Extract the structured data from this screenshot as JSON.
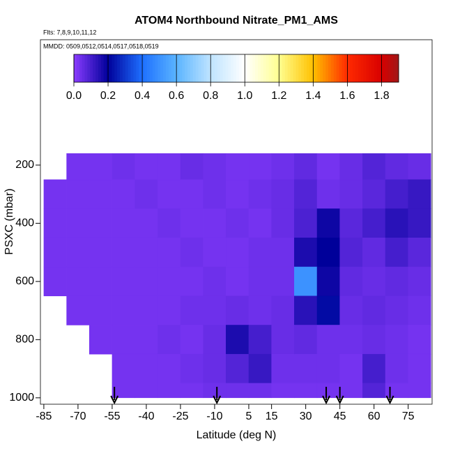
{
  "chart_data": {
    "type": "heatmap",
    "title": "ATOM4 Northbound Nitrate_PM1_AMS",
    "subtitle": "Flts: 7,8,9,10,11,12",
    "annotation": "MMDD: 0509,0512,0514,0517,0518,0519",
    "x_label": "Latitude (deg N)",
    "y_label": "PSXC (mbar)",
    "xlim": [
      -86.5,
      85.5
    ],
    "ylim": [
      1022,
      -231
    ],
    "xticks": [
      -85,
      -70,
      -55,
      -40,
      -25,
      -10,
      5,
      15,
      30,
      45,
      60,
      75
    ],
    "yticks": [
      200,
      400,
      600,
      800,
      1000
    ],
    "x_edges": [
      -85,
      -75,
      -65,
      -55,
      -45,
      -35,
      -25,
      -15,
      -5,
      5,
      15,
      25,
      35,
      45,
      55,
      65,
      75,
      85
    ],
    "y_edges": [
      160,
      250,
      350,
      450,
      550,
      650,
      750,
      850,
      950,
      1000
    ],
    "z": [
      [
        null,
        0.03,
        0.03,
        0.04,
        0.03,
        0.03,
        0.05,
        0.04,
        0.03,
        0.03,
        0.04,
        0.06,
        0.03,
        0.05,
        0.08,
        0.06,
        0.05
      ],
      [
        0.03,
        0.03,
        0.03,
        0.03,
        0.04,
        0.03,
        0.03,
        0.04,
        0.03,
        0.04,
        0.05,
        0.08,
        0.04,
        0.05,
        0.07,
        0.1,
        0.12
      ],
      [
        0.03,
        0.03,
        0.03,
        0.03,
        0.03,
        0.04,
        0.03,
        0.03,
        0.04,
        0.03,
        0.05,
        0.09,
        0.18,
        0.07,
        0.1,
        0.14,
        0.12
      ],
      [
        0.03,
        0.03,
        0.03,
        0.03,
        0.03,
        0.03,
        0.04,
        0.03,
        0.03,
        0.04,
        0.04,
        0.16,
        0.2,
        0.08,
        0.06,
        0.1,
        0.07
      ],
      [
        0.03,
        0.03,
        0.03,
        0.03,
        0.03,
        0.03,
        0.03,
        0.04,
        0.03,
        0.04,
        0.04,
        0.5,
        0.18,
        0.06,
        0.05,
        0.06,
        0.05
      ],
      [
        null,
        0.03,
        0.03,
        0.03,
        0.03,
        0.03,
        0.04,
        0.04,
        0.05,
        0.04,
        0.05,
        0.14,
        0.22,
        0.05,
        0.06,
        0.05,
        0.04
      ],
      [
        null,
        null,
        0.03,
        0.03,
        0.03,
        0.04,
        0.03,
        0.05,
        0.16,
        0.1,
        0.05,
        0.06,
        0.04,
        0.04,
        0.05,
        0.04,
        0.03
      ],
      [
        null,
        null,
        null,
        0.03,
        0.03,
        0.03,
        0.04,
        0.05,
        0.08,
        0.12,
        0.04,
        0.04,
        0.04,
        0.03,
        0.1,
        0.04,
        0.03
      ],
      [
        null,
        null,
        null,
        0.03,
        0.03,
        0.03,
        0.03,
        0.04,
        0.04,
        0.04,
        0.03,
        0.03,
        0.03,
        0.03,
        0.08,
        0.03,
        0.03
      ]
    ],
    "colorbar_lim": [
      0,
      1.9
    ],
    "colorbar_ticks": [
      {
        "value": 0,
        "label": "0.0"
      },
      0.2,
      0.4,
      0.6,
      0.8,
      {
        "value": 1,
        "label": "1.0"
      },
      1.2,
      1.4,
      1.6,
      1.8
    ],
    "colorscale": [
      [
        0,
        "#8a3cff"
      ],
      [
        0.2,
        "#00009a"
      ],
      [
        0.4,
        "#1e70ff"
      ],
      [
        0.6,
        "#5ab4ff"
      ],
      [
        0.8,
        "#bfe4ff"
      ],
      [
        1,
        "#ffffff"
      ],
      [
        1.2,
        "#ffff90"
      ],
      [
        1.4,
        "#ffc000"
      ],
      [
        1.6,
        "#ff2a00"
      ],
      [
        1.8,
        "#d80000"
      ],
      [
        1.9,
        "#a01818"
      ]
    ],
    "arrow_lats": [
      -54,
      -9,
      39,
      45,
      67
    ]
  }
}
